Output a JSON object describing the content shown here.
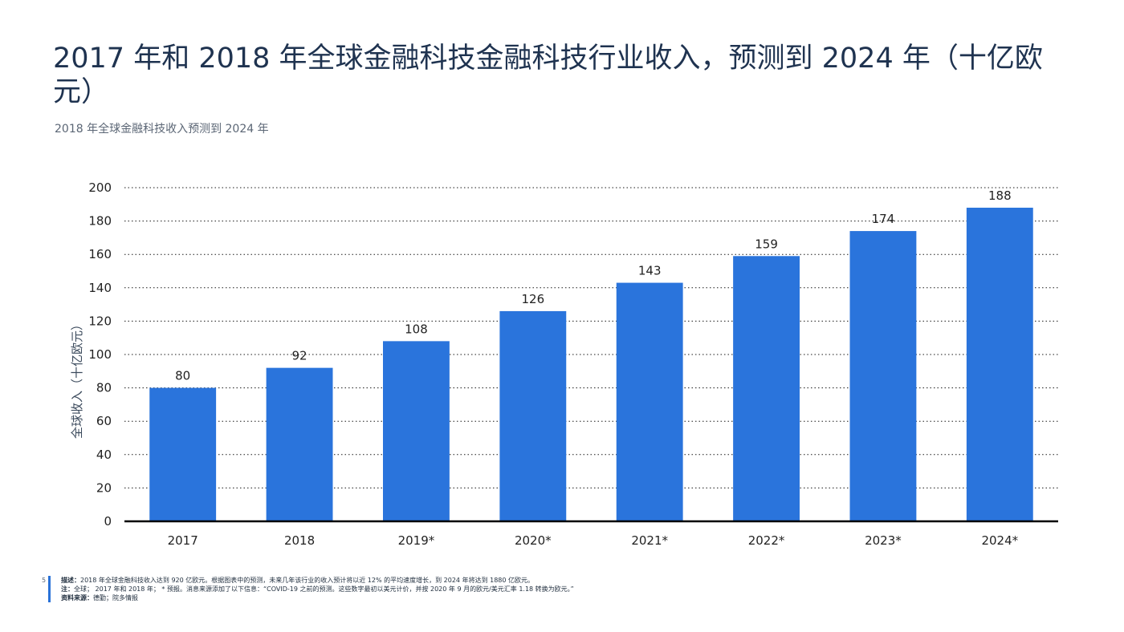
{
  "page": {
    "title": "2017 年和 2018 年全球金融科技金融科技行业收入，预测到 2024 年（十亿欧元）",
    "subtitle": "2018 年全球金融科技收入预测到 2024 年",
    "page_number": "5"
  },
  "footer": {
    "description_label": "描述：",
    "description_text": "2018 年全球金融科技收入达到 920 亿欧元。根据图表中的预测，未来几年该行业的收入预计将以近 12% 的平均速度增长，到 2024 年将达到 1880 亿欧元。",
    "note_label": "注：",
    "note_text": "全球； 2017 年和 2018 年； * 预报。消息来源添加了以下信息：“COVID-19 之前的预测。这些数字最初以美元计价，并按 2020 年 9 月的欧元/美元汇率 1.18 转换为欧元。”",
    "source_label": "资料来源：",
    "source_text": "德勤；院多情报"
  },
  "chart_data": {
    "type": "bar",
    "categories": [
      "2017",
      "2018",
      "2019*",
      "2020*",
      "2021*",
      "2022*",
      "2023*",
      "2024*"
    ],
    "values": [
      80,
      92,
      108,
      126,
      143,
      159,
      174,
      188
    ],
    "xlabel": "",
    "ylabel": "全球收入（十亿欧元）",
    "ylim": [
      0,
      200
    ],
    "yticks": [
      0,
      20,
      40,
      60,
      80,
      100,
      120,
      140,
      160,
      180,
      200
    ],
    "bar_color": "#2a74dc",
    "grid": "dotted horizontal",
    "data_labels": true
  }
}
